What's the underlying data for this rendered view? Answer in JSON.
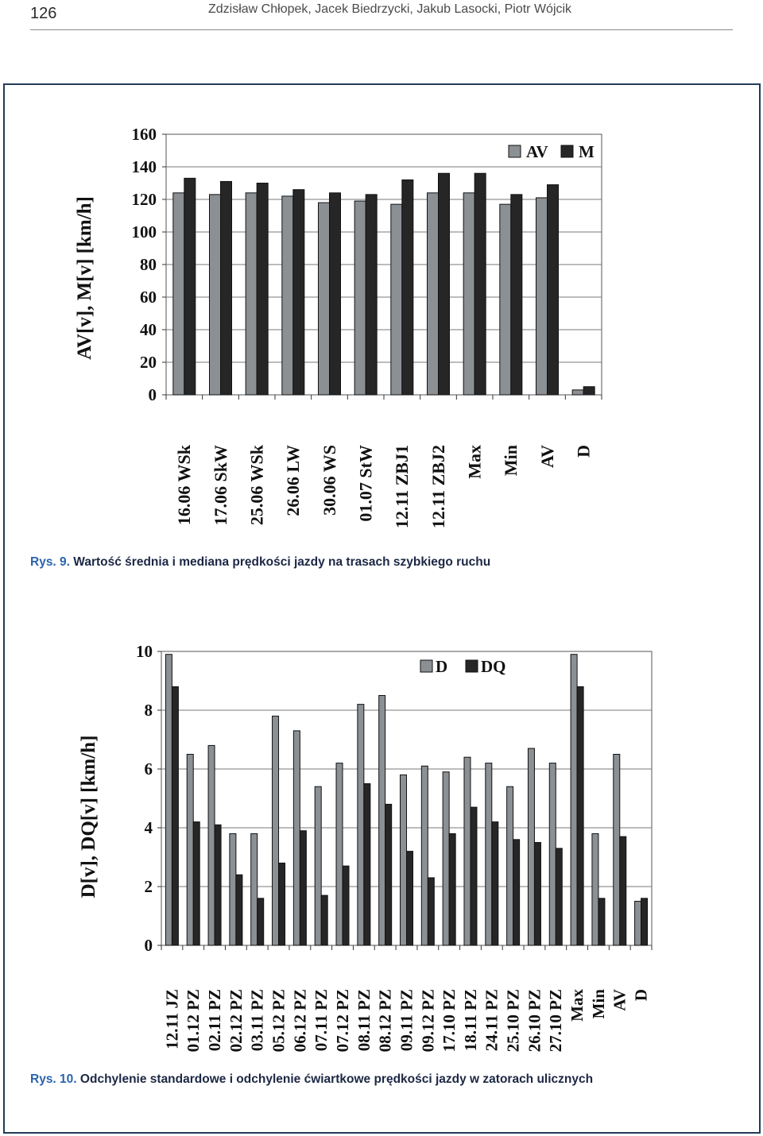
{
  "header": {
    "page_number": "126",
    "authors": "Zdzisław Chłopek, Jacek Biedrzycki, Jakub Lasocki, Piotr Wójcik"
  },
  "figures": [
    {
      "label": "Rys. 9.",
      "caption": "Wartość średnia i mediana prędkości jazdy na trasach szybkiego ruchu"
    },
    {
      "label": "Rys. 10.",
      "caption": "Odchylenie standardowe i odchylenie ćwiartkowe prędkości jazdy w zatorach ulicznych"
    }
  ],
  "colors": {
    "figure_label": "#2a64ad",
    "caption_text": "#1c2744",
    "frame": "#233a57",
    "header_rule": "#8a8a8a"
  },
  "chart_data": [
    {
      "type": "bar",
      "ylabel": "AV[v], M[v] [km/h]",
      "ylim": [
        0,
        160
      ],
      "yticks": [
        0,
        20,
        40,
        60,
        80,
        100,
        120,
        140,
        160
      ],
      "grid": true,
      "legend_position": "top-right",
      "categories": [
        "16.06 WSk",
        "17.06 SkW",
        "25.06 WSk",
        "26.06 LW",
        "30.06 WS",
        "01.07 StW",
        "12.11 ZBJ1",
        "12.11 ZBJ2",
        "Max",
        "Min",
        "AV",
        "D"
      ],
      "series": [
        {
          "name": "AV",
          "color": "#8b9095",
          "values": [
            124,
            123,
            124,
            122,
            118,
            119,
            117,
            124,
            124,
            117,
            121,
            3
          ]
        },
        {
          "name": "M",
          "color": "#262626",
          "values": [
            133,
            131,
            130,
            126,
            124,
            123,
            132,
            136,
            136,
            123,
            129,
            5
          ]
        }
      ]
    },
    {
      "type": "bar",
      "ylabel": "D[v], DQ[v] [km/h]",
      "ylim": [
        0,
        10
      ],
      "yticks": [
        0,
        2,
        4,
        6,
        8,
        10
      ],
      "grid": true,
      "legend_position": "top-right",
      "categories": [
        "12.11 JZ",
        "01.12 PZ",
        "02.11 PZ",
        "02.12 PZ",
        "03.11 PZ",
        "05.12 PZ",
        "06.12 PZ",
        "07.11 PZ",
        "07.12 PZ",
        "08.11 PZ",
        "08.12 PZ",
        "09.11 PZ",
        "09.12 PZ",
        "17.10 PZ",
        "18.11 PZ",
        "24.11 PZ",
        "25.10 PZ",
        "26.10 PZ",
        "27.10 PZ",
        "Max",
        "Min",
        "AV",
        "D"
      ],
      "series": [
        {
          "name": "D",
          "color": "#8b9095",
          "values": [
            9.9,
            6.5,
            6.8,
            3.8,
            3.8,
            7.8,
            7.3,
            5.4,
            6.2,
            8.2,
            8.5,
            5.8,
            6.1,
            5.9,
            6.4,
            6.2,
            5.4,
            6.7,
            6.2,
            9.9,
            3.8,
            6.5,
            1.5
          ]
        },
        {
          "name": "DQ",
          "color": "#262626",
          "values": [
            8.8,
            4.2,
            4.1,
            2.4,
            1.6,
            2.8,
            3.9,
            1.7,
            2.7,
            5.5,
            4.8,
            3.2,
            2.3,
            3.8,
            4.7,
            4.2,
            3.6,
            3.5,
            3.3,
            8.8,
            1.6,
            3.7,
            1.6
          ]
        }
      ]
    }
  ]
}
